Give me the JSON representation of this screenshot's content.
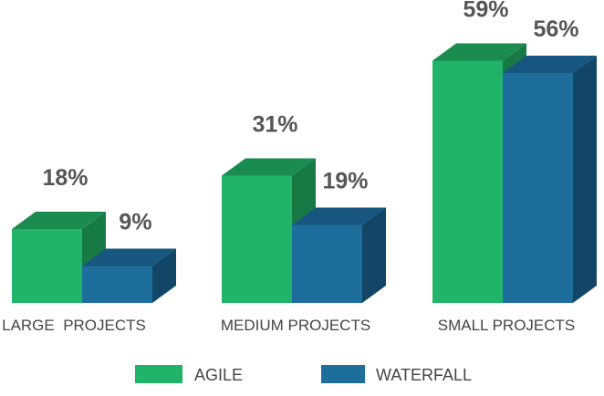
{
  "chart_data": {
    "type": "bar",
    "title": "",
    "xlabel": "",
    "ylabel": "",
    "ylim": [
      0,
      60
    ],
    "grid": false,
    "legend_position": "bottom",
    "categories": [
      "LARGE  PROJECTS",
      "MEDIUM PROJECTS",
      "SMALL PROJECTS"
    ],
    "series": [
      {
        "name": "AGILE",
        "values": [
          18,
          31,
          59
        ],
        "labels": [
          "18%",
          "31%",
          "59%"
        ],
        "color": "#22b36a",
        "top_color": "#1b8c50",
        "side_color": "#177a45"
      },
      {
        "name": "WATERFALL",
        "values": [
          9,
          19,
          56
        ],
        "labels": [
          "9%",
          "19%",
          "56%"
        ],
        "color": "#1d6e9c",
        "top_color": "#17567f",
        "side_color": "#134566"
      }
    ]
  }
}
